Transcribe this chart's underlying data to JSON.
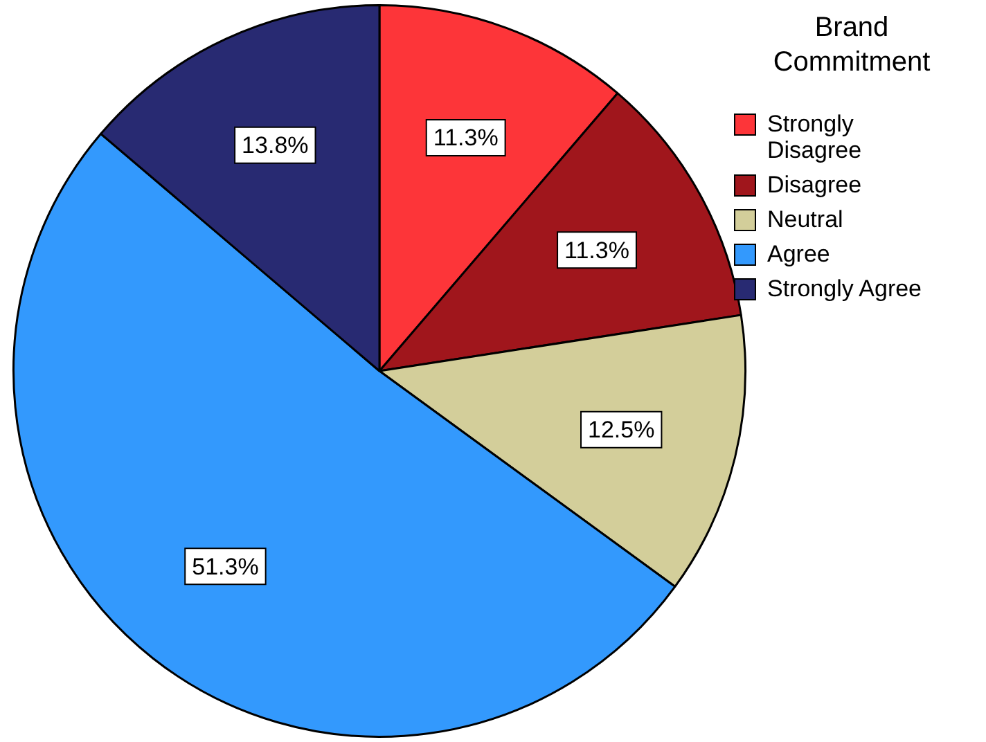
{
  "chart_data": {
    "type": "pie",
    "legend_title": "Brand Commitment",
    "legend": "right",
    "categories": [
      "Strongly Disagree",
      "Disagree",
      "Neutral",
      "Agree",
      "Strongly Agree"
    ],
    "values": [
      11.3,
      11.3,
      12.5,
      51.3,
      13.8
    ],
    "colors": [
      "#fd3539",
      "#a0161c",
      "#d3ce9a",
      "#3399fd",
      "#282a72"
    ],
    "value_labels": [
      "11.3%",
      "11.3%",
      "12.5%",
      "51.3%",
      "13.8%"
    ]
  }
}
